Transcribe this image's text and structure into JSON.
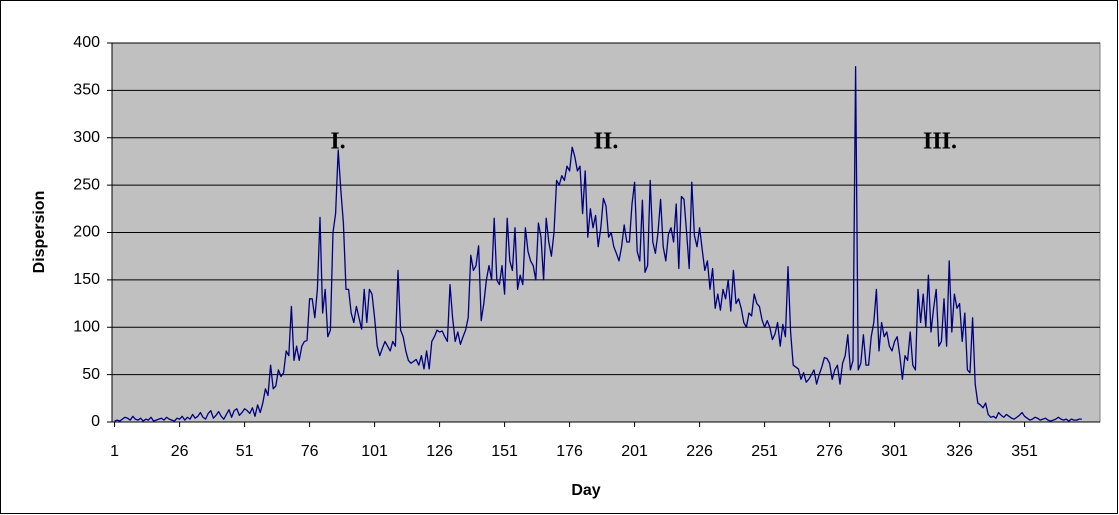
{
  "chart_data": {
    "type": "line",
    "x_label": "Day",
    "y_label": "Dispersion",
    "annotations": [
      "I.",
      "II.",
      "III."
    ],
    "color": "#000080",
    "plot_background": "#c0c0c0",
    "grid": true,
    "xlim": [
      0,
      380
    ],
    "xticks": [
      1,
      26,
      51,
      76,
      101,
      126,
      151,
      176,
      201,
      226,
      251,
      276,
      301,
      326,
      351
    ],
    "ylim": [
      0,
      400
    ],
    "yticks": [
      0,
      50,
      100,
      150,
      200,
      250,
      300,
      350,
      400
    ],
    "x": [
      1,
      2,
      3,
      4,
      5,
      6,
      7,
      8,
      9,
      10,
      11,
      12,
      13,
      14,
      15,
      16,
      17,
      18,
      19,
      20,
      21,
      22,
      23,
      24,
      25,
      26,
      27,
      28,
      29,
      30,
      31,
      32,
      33,
      34,
      35,
      36,
      37,
      38,
      39,
      40,
      41,
      42,
      43,
      44,
      45,
      46,
      47,
      48,
      49,
      50,
      51,
      52,
      53,
      54,
      55,
      56,
      57,
      58,
      59,
      60,
      61,
      62,
      63,
      64,
      65,
      66,
      67,
      68,
      69,
      70,
      71,
      72,
      73,
      74,
      75,
      76,
      77,
      78,
      79,
      80,
      81,
      82,
      83,
      84,
      85,
      86,
      87,
      88,
      89,
      90,
      91,
      92,
      93,
      94,
      95,
      96,
      97,
      98,
      99,
      100,
      101,
      102,
      103,
      104,
      105,
      106,
      107,
      108,
      109,
      110,
      111,
      112,
      113,
      114,
      115,
      116,
      117,
      118,
      119,
      120,
      121,
      122,
      123,
      124,
      125,
      126,
      127,
      128,
      129,
      130,
      131,
      132,
      133,
      134,
      135,
      136,
      137,
      138,
      139,
      140,
      141,
      142,
      143,
      144,
      145,
      146,
      147,
      148,
      149,
      150,
      151,
      152,
      153,
      154,
      155,
      156,
      157,
      158,
      159,
      160,
      161,
      162,
      163,
      164,
      165,
      166,
      167,
      168,
      169,
      170,
      171,
      172,
      173,
      174,
      175,
      176,
      177,
      178,
      179,
      180,
      181,
      182,
      183,
      184,
      185,
      186,
      187,
      188,
      189,
      190,
      191,
      192,
      193,
      194,
      195,
      196,
      197,
      198,
      199,
      200,
      201,
      202,
      203,
      204,
      205,
      206,
      207,
      208,
      209,
      210,
      211,
      212,
      213,
      214,
      215,
      216,
      217,
      218,
      219,
      220,
      221,
      222,
      223,
      224,
      225,
      226,
      227,
      228,
      229,
      230,
      231,
      232,
      233,
      234,
      235,
      236,
      237,
      238,
      239,
      240,
      241,
      242,
      243,
      244,
      245,
      246,
      247,
      248,
      249,
      250,
      251,
      252,
      253,
      254,
      255,
      256,
      257,
      258,
      259,
      260,
      261,
      262,
      263,
      264,
      265,
      266,
      267,
      268,
      269,
      270,
      271,
      272,
      273,
      274,
      275,
      276,
      277,
      278,
      279,
      280,
      281,
      282,
      283,
      284,
      285,
      286,
      287,
      288,
      289,
      290,
      291,
      292,
      293,
      294,
      295,
      296,
      297,
      298,
      299,
      300,
      301,
      302,
      303,
      304,
      305,
      306,
      307,
      308,
      309,
      310,
      311,
      312,
      313,
      314,
      315,
      316,
      317,
      318,
      319,
      320,
      321,
      322,
      323,
      324,
      325,
      326,
      327,
      328,
      329,
      330,
      331,
      332,
      333,
      334,
      335,
      336,
      337,
      338,
      339,
      340,
      341,
      342,
      343,
      344,
      345,
      346,
      347,
      348,
      349,
      350,
      351,
      352,
      353,
      354,
      355,
      356,
      357,
      358,
      359,
      360,
      361,
      362,
      363,
      364,
      365,
      366,
      367,
      368,
      369,
      370,
      371,
      372,
      373
    ],
    "values": [
      1,
      2,
      1,
      3,
      5,
      4,
      2,
      6,
      3,
      2,
      4,
      1,
      3,
      2,
      5,
      1,
      2,
      3,
      4,
      2,
      5,
      3,
      2,
      1,
      4,
      3,
      6,
      2,
      5,
      3,
      8,
      4,
      6,
      10,
      5,
      3,
      9,
      12,
      4,
      7,
      11,
      6,
      3,
      8,
      13,
      5,
      12,
      14,
      7,
      10,
      14,
      12,
      9,
      15,
      6,
      18,
      10,
      20,
      35,
      28,
      60,
      35,
      38,
      55,
      48,
      52,
      75,
      70,
      122,
      65,
      80,
      65,
      80,
      85,
      86,
      130,
      130,
      110,
      140,
      216,
      115,
      140,
      90,
      97,
      200,
      220,
      287,
      245,
      210,
      140,
      140,
      115,
      105,
      122,
      110,
      98,
      140,
      105,
      140,
      135,
      110,
      80,
      70,
      78,
      85,
      80,
      75,
      85,
      80,
      160,
      97,
      90,
      75,
      65,
      62,
      64,
      66,
      60,
      70,
      56,
      75,
      56,
      85,
      90,
      97,
      95,
      96,
      90,
      85,
      145,
      110,
      85,
      95,
      82,
      90,
      97,
      110,
      176,
      160,
      165,
      186,
      107,
      125,
      150,
      165,
      150,
      215,
      150,
      145,
      165,
      135,
      215,
      170,
      160,
      205,
      140,
      155,
      145,
      205,
      180,
      170,
      165,
      150,
      210,
      195,
      150,
      215,
      190,
      175,
      200,
      255,
      250,
      260,
      255,
      270,
      265,
      290,
      280,
      265,
      270,
      220,
      265,
      195,
      225,
      205,
      218,
      185,
      205,
      236,
      228,
      195,
      200,
      185,
      178,
      170,
      185,
      208,
      190,
      190,
      230,
      253,
      180,
      170,
      234,
      158,
      165,
      255,
      190,
      178,
      200,
      235,
      185,
      170,
      198,
      205,
      190,
      230,
      162,
      238,
      235,
      200,
      162,
      253,
      197,
      185,
      205,
      182,
      160,
      170,
      140,
      162,
      120,
      135,
      118,
      140,
      130,
      150,
      117,
      160,
      125,
      130,
      120,
      105,
      100,
      115,
      112,
      135,
      125,
      122,
      108,
      100,
      107,
      100,
      87,
      93,
      105,
      80,
      103,
      90,
      164,
      95,
      60,
      58,
      56,
      45,
      52,
      42,
      45,
      50,
      55,
      40,
      50,
      58,
      68,
      67,
      62,
      45,
      55,
      60,
      40,
      62,
      70,
      92,
      55,
      65,
      375,
      55,
      62,
      92,
      60,
      60,
      90,
      105,
      140,
      75,
      105,
      90,
      95,
      80,
      75,
      85,
      90,
      70,
      45,
      70,
      65,
      95,
      60,
      55,
      140,
      105,
      135,
      100,
      155,
      95,
      120,
      140,
      80,
      85,
      130,
      80,
      170,
      95,
      135,
      120,
      125,
      85,
      115,
      55,
      52,
      110,
      40,
      20,
      18,
      15,
      20,
      8,
      5,
      6,
      4,
      10,
      7,
      5,
      8,
      6,
      4,
      3,
      5,
      7,
      10,
      6,
      4,
      2,
      3,
      5,
      4,
      2,
      3,
      4,
      2,
      1,
      2,
      3,
      5,
      3,
      2,
      3,
      1,
      3,
      2,
      2,
      3,
      3
    ]
  }
}
